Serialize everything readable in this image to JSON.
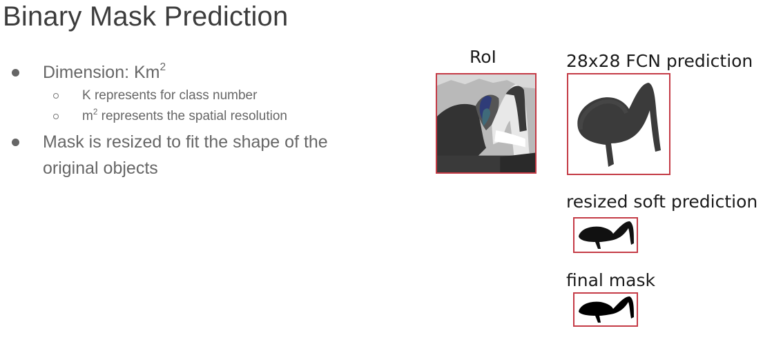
{
  "title": "Binary Mask Prediction",
  "bullets": {
    "dimension": {
      "prefix": "Dimension: ",
      "base": "Km",
      "sup": "2"
    },
    "k_note": "K represents for class number",
    "m_note": {
      "base": "m",
      "sup": "2",
      "rest": " represents the spatial resolution"
    },
    "mask_line1": "Mask is resized to fit the shape of the",
    "mask_line2": "original objects"
  },
  "figure": {
    "roi_label": "RoI",
    "fcn_label": "28x28 FCN prediction",
    "soft_label": "resized soft prediction",
    "final_label": "final mask"
  },
  "colors": {
    "frame": "#c43a45",
    "mask": "#1a1a1a",
    "text": "#666666",
    "title": "#3c3c3c"
  }
}
